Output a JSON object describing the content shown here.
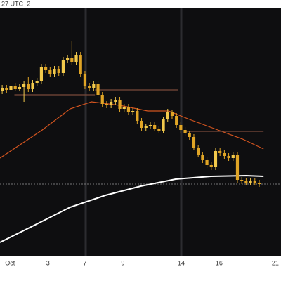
{
  "chart_data": {
    "type": "candlestick",
    "header": "27 UTC+2",
    "xlim": [
      -0.5,
      64
    ],
    "ylim": [
      35,
      388
    ],
    "xticks": [
      {
        "value": 1.8,
        "label": "Oct"
      },
      {
        "value": 10.5,
        "label": "3"
      },
      {
        "value": 19,
        "label": "7"
      },
      {
        "value": 27.7,
        "label": "9"
      },
      {
        "value": 41.1,
        "label": "14"
      },
      {
        "value": 49.8,
        "label": "16"
      },
      {
        "value": 62.7,
        "label": "21"
      }
    ],
    "up_color": "#f2c94c",
    "down_color": "#e0a526",
    "open": [
      270,
      275,
      272,
      278,
      274,
      276,
      280,
      273,
      282,
      285,
      305,
      300,
      295,
      302,
      296,
      315,
      318,
      312,
      322,
      295,
      278,
      275,
      280,
      265,
      252,
      250,
      255,
      258,
      245,
      248,
      240,
      242,
      228,
      218,
      220,
      222,
      217,
      214,
      230,
      240,
      235,
      222,
      215,
      210,
      205,
      190,
      180,
      172,
      165,
      162,
      185,
      182,
      178,
      175,
      180,
      144,
      142,
      140,
      143,
      140
    ],
    "high": [
      279,
      279,
      282,
      282,
      280,
      284,
      290,
      286,
      289,
      309,
      309,
      304,
      306,
      306,
      319,
      322,
      342,
      326,
      326,
      299,
      282,
      284,
      284,
      269,
      256,
      259,
      262,
      262,
      252,
      252,
      246,
      246,
      232,
      224,
      226,
      226,
      221,
      234,
      245,
      244,
      239,
      226,
      219,
      214,
      209,
      194,
      184,
      176,
      169,
      190,
      189,
      186,
      182,
      184,
      184,
      148,
      146,
      147,
      147,
      144
    ],
    "low": [
      266,
      268,
      268,
      270,
      270,
      255,
      269,
      269,
      278,
      281,
      296,
      291,
      291,
      292,
      292,
      311,
      308,
      308,
      291,
      274,
      271,
      271,
      261,
      248,
      246,
      246,
      251,
      241,
      241,
      236,
      236,
      224,
      214,
      214,
      216,
      213,
      210,
      210,
      226,
      231,
      218,
      211,
      206,
      201,
      186,
      176,
      168,
      161,
      158,
      158,
      178,
      174,
      171,
      171,
      140,
      138,
      136,
      136,
      136,
      134
    ],
    "close": [
      275,
      272,
      278,
      274,
      276,
      280,
      273,
      282,
      285,
      305,
      300,
      295,
      302,
      296,
      315,
      318,
      312,
      322,
      295,
      278,
      275,
      280,
      265,
      252,
      250,
      255,
      258,
      245,
      248,
      240,
      242,
      228,
      218,
      220,
      222,
      217,
      214,
      230,
      240,
      235,
      222,
      215,
      210,
      205,
      190,
      180,
      172,
      165,
      162,
      185,
      182,
      178,
      175,
      180,
      144,
      142,
      140,
      143,
      140,
      138
    ],
    "lines": [
      {
        "color": "#d2541f",
        "x": [
          -0.5,
          9.2,
          15.6,
          20.5,
          27,
          33.4,
          38.2,
          43,
          49.5,
          55.2,
          60
        ],
        "values": [
          175,
          215,
          245,
          255,
          250,
          242,
          242,
          230,
          215,
          202,
          188
        ]
      },
      {
        "color": "#ffffff",
        "x": [
          -0.5,
          7.6,
          15.6,
          23.7,
          31.8,
          39.8,
          47.9,
          56,
          60
        ],
        "values": [
          55,
          80,
          105,
          122,
          135,
          145,
          149,
          150,
          149
        ]
      },
      {
        "color": "#7a4a3a",
        "x": [
          2.8,
          21.3
        ],
        "values": [
          265,
          265
        ]
      },
      {
        "color": "#7a4a3a",
        "x": [
          21.3,
          40.3
        ],
        "values": [
          272,
          272
        ]
      },
      {
        "color": "#7a4a3a",
        "x": [
          41.8,
          60
        ],
        "values": [
          213,
          213
        ]
      }
    ],
    "level": 138,
    "level_color": "#777777"
  }
}
